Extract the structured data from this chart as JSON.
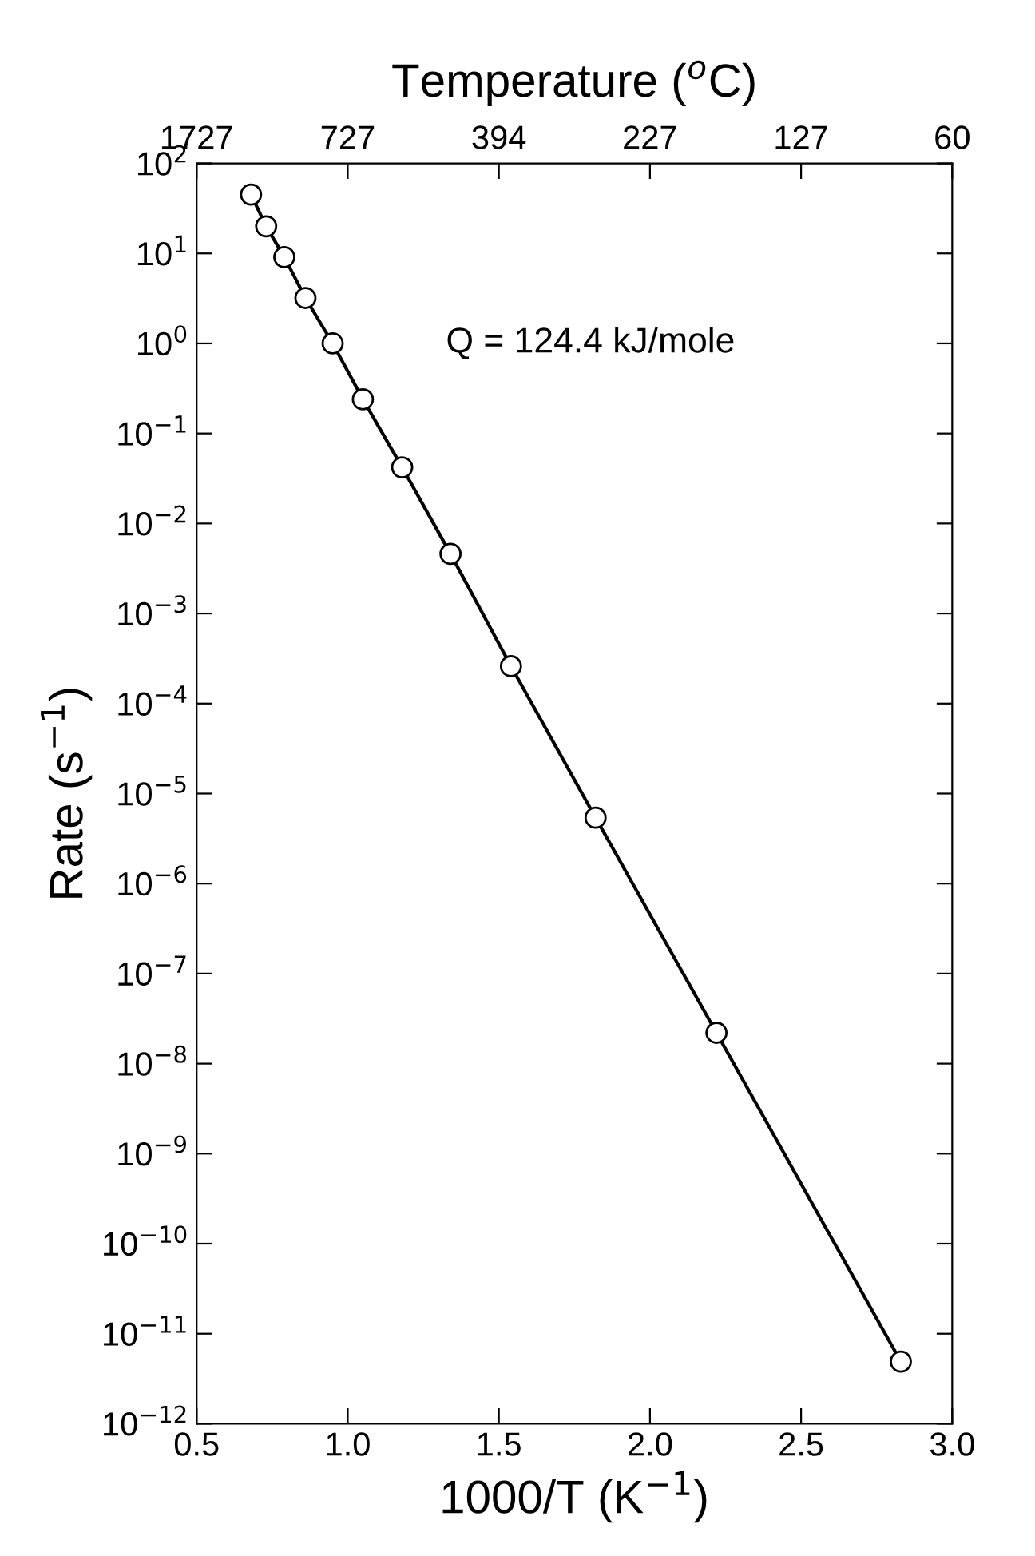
{
  "chart_data": {
    "type": "line",
    "xlabel": "1000/T (K$^{−1}$)",
    "ylabel": "Rate (s$^{−1}$)",
    "x2label": "Temperature ($^{o}$C)",
    "annotations": [
      "Q = 124.4 kJ/mole",
      "1727",
      "727",
      "394",
      "227",
      "127",
      "60"
    ],
    "series": [
      {
        "color": "#000000",
        "x": [
          0.68,
          0.73,
          0.79,
          0.86,
          0.95,
          1.05,
          1.18,
          1.34,
          1.54,
          1.82,
          2.22,
          2.83
        ],
        "values": [
          45,
          20,
          9.1,
          3.2,
          1.0,
          0.24,
          0.042,
          0.0046,
          0.00026,
          5.4e-06,
          2.2e-08,
          4.9e-12
        ]
      }
    ],
    "marker": "circle",
    "line_style": "solid",
    "log": "y",
    "grid": false,
    "legend": false,
    "xlim": [
      0.5,
      3.0
    ],
    "xticks": [
      0.5,
      {
        "value": 1,
        "label": "1.0"
      },
      1.5,
      {
        "value": 2,
        "label": "2.0"
      },
      2.5,
      {
        "value": 3,
        "label": "3.0"
      }
    ],
    "ylim": [
      1e-12,
      100
    ],
    "yticks": [
      {
        "value": 1e-12,
        "label": "10$^{−12}$"
      },
      {
        "value": 1e-11,
        "label": "10$^{−11}$"
      },
      {
        "value": 1e-10,
        "label": "10$^{−10}$"
      },
      {
        "value": 1e-09,
        "label": "10$^{−9}$"
      },
      {
        "value": 1e-08,
        "label": "10$^{−8}$"
      },
      {
        "value": 1e-07,
        "label": "10$^{−7}$"
      },
      {
        "value": 1e-06,
        "label": "10$^{−6}$"
      },
      {
        "value": 1e-05,
        "label": "10$^{−5}$"
      },
      {
        "value": 0.0001,
        "label": "10$^{−4}$"
      },
      {
        "value": 0.001,
        "label": "10$^{−3}$"
      },
      {
        "value": 0.01,
        "label": "10$^{−2}$"
      },
      {
        "value": 0.1,
        "label": "10$^{−1}$"
      },
      {
        "value": 1,
        "label": "10$^{0}$"
      },
      {
        "value": 10,
        "label": "10$^{1}$"
      },
      {
        "value": 100,
        "label": "10$^{2}$"
      }
    ]
  }
}
